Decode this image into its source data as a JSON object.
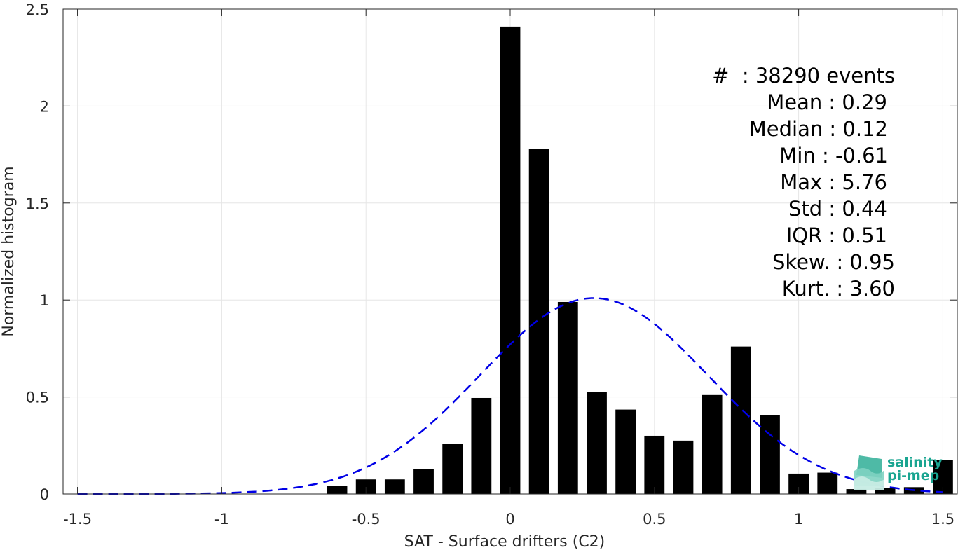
{
  "chart_data": {
    "type": "bar",
    "xlabel": "SAT - Surface drifters (C2)",
    "ylabel": "Normalized histogram",
    "xlim": [
      -1.55,
      1.55
    ],
    "ylim": [
      0,
      2.5
    ],
    "xticks": [
      -1.5,
      -1,
      -0.5,
      0,
      0.5,
      1,
      1.5
    ],
    "xtick_labels": [
      "-1.5",
      "-1",
      "-0.5",
      "0",
      "0.5",
      "1",
      "1.5"
    ],
    "yticks": [
      0,
      0.5,
      1,
      1.5,
      2,
      2.5
    ],
    "ytick_labels": [
      "0",
      "0.5",
      "1",
      "1.5",
      "2",
      "2.5"
    ],
    "grid": true,
    "bar_color": "#000000",
    "bar_width": 0.07,
    "bins": [
      -0.6,
      -0.5,
      -0.4,
      -0.3,
      -0.2,
      -0.1,
      0.0,
      0.1,
      0.2,
      0.3,
      0.4,
      0.5,
      0.6,
      0.7,
      0.8,
      0.9,
      1.0,
      1.1,
      1.2,
      1.3,
      1.4,
      1.5
    ],
    "values": [
      0.04,
      0.075,
      0.075,
      0.13,
      0.26,
      0.495,
      2.41,
      1.78,
      0.99,
      0.525,
      0.435,
      0.3,
      0.275,
      0.51,
      0.76,
      0.405,
      0.105,
      0.11,
      0.025,
      0.03,
      0.035,
      0.175
    ],
    "fit": {
      "type": "gaussian",
      "mean": 0.29,
      "std": 0.395,
      "color": "#0000e6",
      "style": "dashed",
      "x_range": [
        -1.5,
        1.5
      ]
    },
    "stats": {
      "lines": [
        "#  : 38290 events",
        "Mean : 0.29",
        "Median : 0.12",
        "Min : -0.61",
        "Max : 5.76",
        "Std : 0.44",
        "IQR : 0.51",
        "Skew. : 0.95",
        "Kurt. : 3.60"
      ]
    }
  },
  "logo": {
    "line1": "salinity",
    "line2": "pi-mep"
  }
}
